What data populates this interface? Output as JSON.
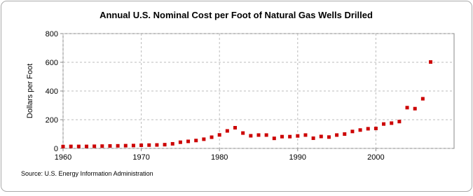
{
  "chart_data": {
    "type": "scatter",
    "title": "Annual U.S. Nominal Cost per Foot of Natural Gas Wells Drilled",
    "y_label": "Dollars per Foot",
    "source": "Source: U.S. Energy Information Administration",
    "x": [
      1960,
      1961,
      1962,
      1963,
      1964,
      1965,
      1966,
      1967,
      1968,
      1969,
      1970,
      1971,
      1972,
      1973,
      1974,
      1975,
      1976,
      1977,
      1978,
      1979,
      1980,
      1981,
      1982,
      1983,
      1984,
      1985,
      1986,
      1987,
      1988,
      1989,
      1990,
      1991,
      1992,
      1993,
      1994,
      1995,
      1996,
      1997,
      1998,
      1999,
      2000,
      2001,
      2002,
      2003,
      2004,
      2005,
      2006,
      2007
    ],
    "series": [
      {
        "name": "Cost per Foot",
        "color": "#cc0000",
        "values": [
          13,
          14,
          14,
          14,
          15,
          16,
          17,
          18,
          19,
          20,
          22,
          23,
          24,
          26,
          32,
          43,
          49,
          55,
          64,
          78,
          94,
          122,
          144,
          107,
          88,
          93,
          93,
          70,
          82,
          82,
          87,
          93,
          71,
          83,
          79,
          93,
          100,
          118,
          128,
          137,
          139,
          170,
          176,
          187,
          284,
          277,
          346,
          602
        ]
      }
    ],
    "xlim": [
      1960,
      2010
    ],
    "xticks": [
      1960,
      1970,
      1980,
      1990,
      2000
    ],
    "ylim": [
      0,
      800
    ],
    "yticks": [
      0,
      200,
      400,
      600,
      800
    ],
    "grid": true
  }
}
